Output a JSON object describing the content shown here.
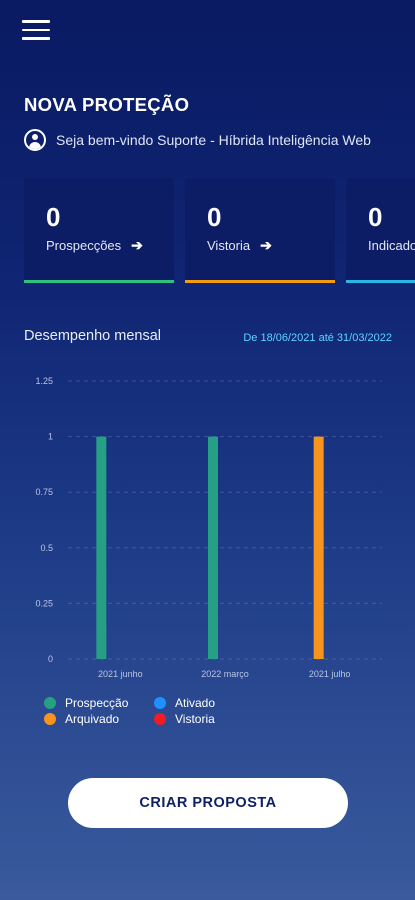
{
  "header": {
    "menu_icon": "hamburger-menu-icon",
    "title": "NOVA PROTEÇÃO"
  },
  "welcome": {
    "icon": "user-circle-icon",
    "text": "Seja bem-vindo Suporte - Híbrida Inteligência Web"
  },
  "cards": [
    {
      "value": "0",
      "label": "Prospecções",
      "color": "#2ec27e",
      "icon": "arrow-right-icon"
    },
    {
      "value": "0",
      "label": "Vistoria",
      "color": "#f39c12",
      "icon": "arrow-right-icon"
    },
    {
      "value": "0",
      "label": "Indicados",
      "color": "#2ab7e8",
      "icon": "arrow-right-icon"
    }
  ],
  "performance": {
    "title": "Desempenho mensal",
    "date_range": "De 18/06/2021 até 31/03/2022"
  },
  "chart_data": {
    "type": "bar",
    "categories": [
      "2021 junho",
      "2022 março",
      "2021 julho"
    ],
    "series": [
      {
        "name": "Prospecção",
        "color": "#26a085",
        "values": [
          1,
          1,
          0
        ]
      },
      {
        "name": "Arquivado",
        "color": "#f7941d",
        "values": [
          0,
          0,
          1
        ]
      },
      {
        "name": "Ativado",
        "color": "#1e90ff",
        "values": [
          0,
          0,
          0
        ]
      },
      {
        "name": "Vistoria",
        "color": "#ee1c24",
        "values": [
          0,
          0,
          0
        ]
      }
    ],
    "ylim": [
      0,
      1.25
    ],
    "yticks": [
      "0",
      "0.25",
      "0.5",
      "0.75",
      "1",
      "1.25"
    ],
    "grid": true,
    "legend_position": "bottom"
  },
  "cta": {
    "label": "CRIAR PROPOSTA"
  }
}
